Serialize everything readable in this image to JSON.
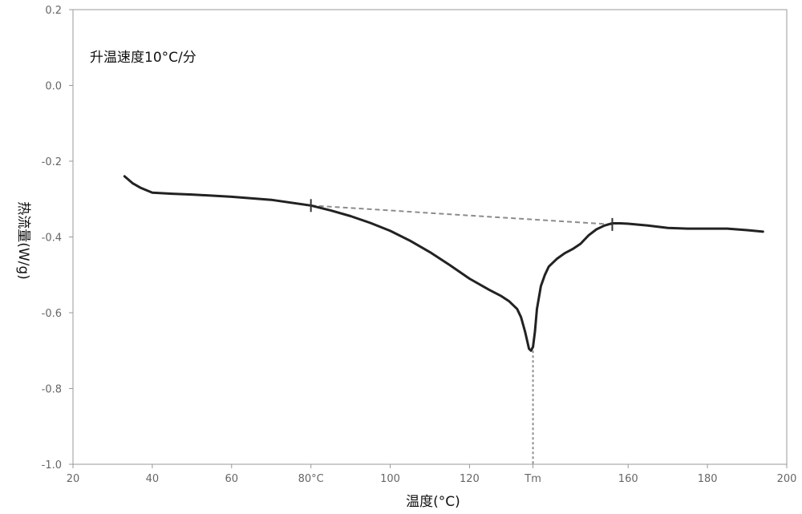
{
  "chart_data": {
    "type": "line",
    "annotation": "升温速度10°C/分",
    "xlabel": "温度(°C)",
    "ylabel": "热流量(W/g)",
    "xlim": [
      20,
      200
    ],
    "ylim": [
      -1.0,
      0.2
    ],
    "grid": false,
    "x_ticks": [
      {
        "value": 20,
        "label": "20"
      },
      {
        "value": 40,
        "label": "40"
      },
      {
        "value": 60,
        "label": "60"
      },
      {
        "value": 80,
        "label": "80°C"
      },
      {
        "value": 100,
        "label": "100"
      },
      {
        "value": 120,
        "label": "120"
      },
      {
        "value": 136,
        "label": "Tm"
      },
      {
        "value": 160,
        "label": "160"
      },
      {
        "value": 180,
        "label": "180"
      },
      {
        "value": 200,
        "label": "200"
      }
    ],
    "y_ticks": [
      {
        "value": 0.2,
        "label": "0.2"
      },
      {
        "value": 0.0,
        "label": "0.0"
      },
      {
        "value": -0.2,
        "label": "-0.2"
      },
      {
        "value": -0.4,
        "label": "-0.4"
      },
      {
        "value": -0.6,
        "label": "-0.6"
      },
      {
        "value": -0.8,
        "label": "-0.8"
      },
      {
        "value": -1.0,
        "label": "-1.0"
      }
    ],
    "series": [
      {
        "x": [
          33,
          35,
          37,
          40,
          45,
          50,
          60,
          70,
          80,
          85,
          90,
          95,
          100,
          105,
          110,
          115,
          120,
          125,
          128,
          130,
          132,
          133,
          134,
          135,
          135.5,
          136,
          136.5,
          137,
          138,
          139,
          140,
          142,
          144,
          146,
          148,
          150,
          152,
          154,
          156,
          158,
          160,
          165,
          170,
          175,
          180,
          185,
          190,
          194
        ],
        "y": [
          -0.24,
          -0.258,
          -0.27,
          -0.283,
          -0.286,
          -0.288,
          -0.294,
          -0.302,
          -0.317,
          -0.33,
          -0.345,
          -0.363,
          -0.384,
          -0.41,
          -0.44,
          -0.474,
          -0.51,
          -0.54,
          -0.556,
          -0.57,
          -0.59,
          -0.612,
          -0.65,
          -0.695,
          -0.7,
          -0.69,
          -0.65,
          -0.59,
          -0.53,
          -0.5,
          -0.478,
          -0.458,
          -0.443,
          -0.432,
          -0.418,
          -0.396,
          -0.38,
          -0.37,
          -0.364,
          -0.364,
          -0.365,
          -0.37,
          -0.376,
          -0.378,
          -0.378,
          -0.378,
          -0.382,
          -0.386
        ]
      }
    ],
    "baseline": {
      "x": [
        80,
        156
      ],
      "y": [
        -0.317,
        -0.367
      ]
    },
    "tm_marker": {
      "x": 136,
      "y_from": -0.7,
      "y_to": -1.0
    }
  }
}
